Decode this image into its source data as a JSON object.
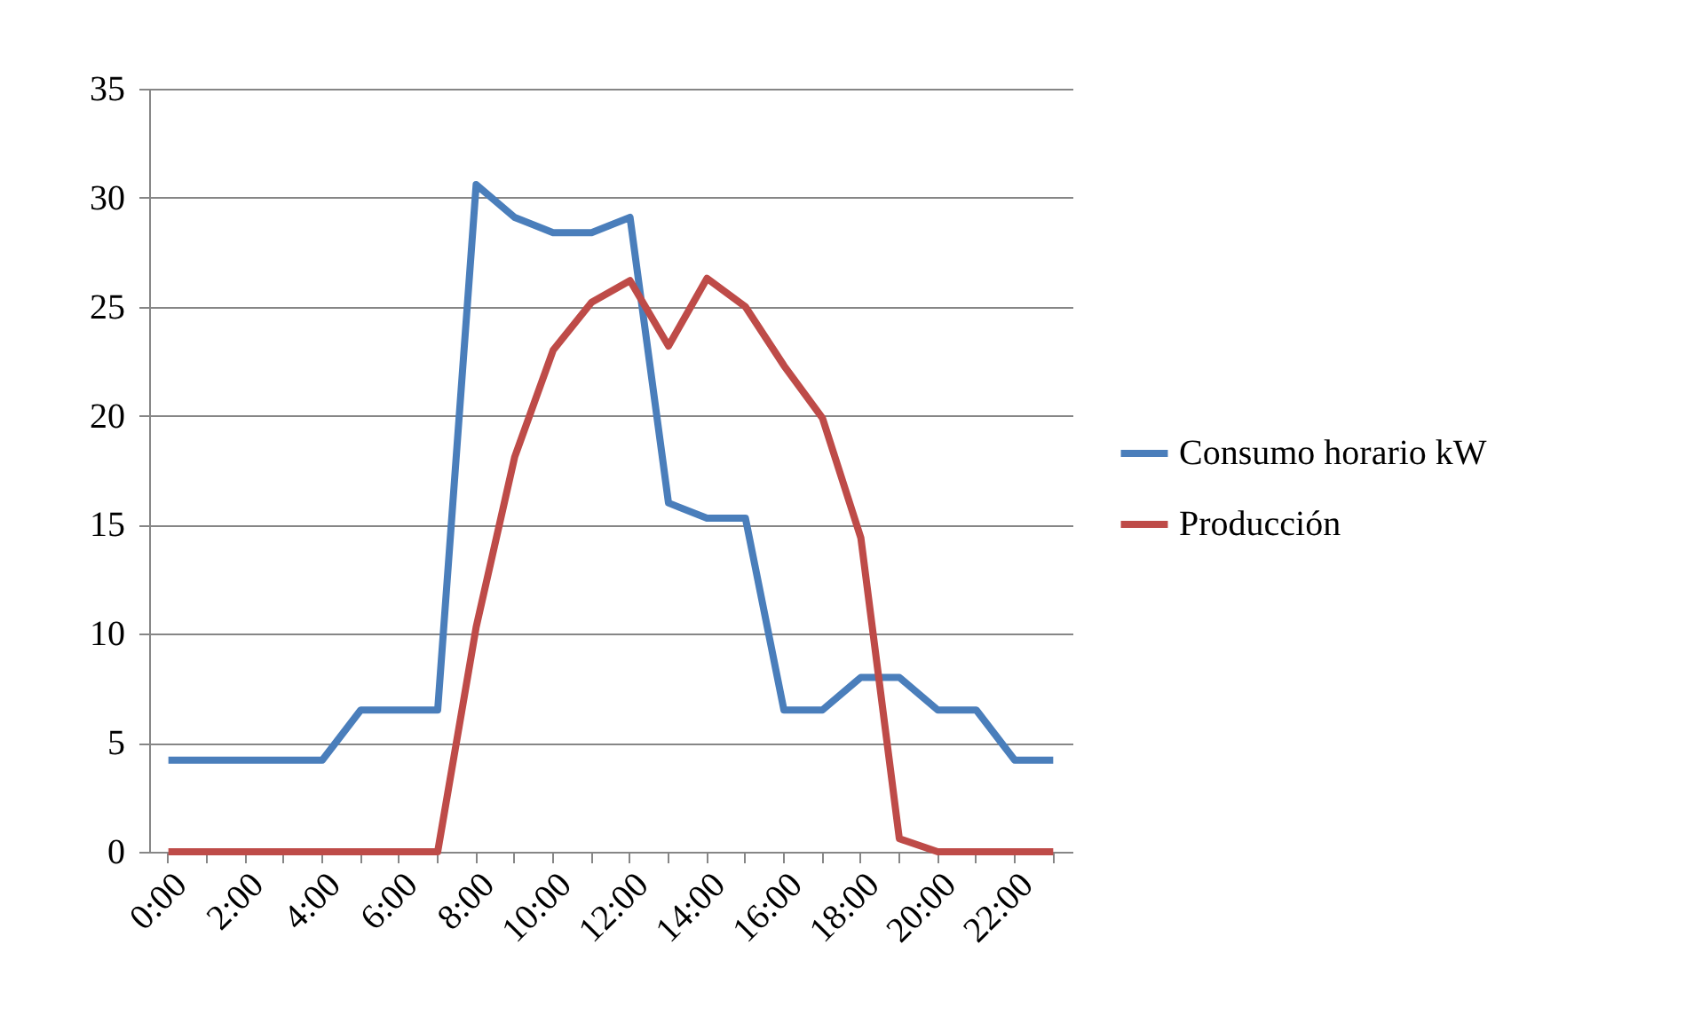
{
  "chart_data": {
    "type": "line",
    "categories": [
      "0:00",
      null,
      "2:00",
      null,
      "4:00",
      null,
      "6:00",
      null,
      "8:00",
      null,
      "10:00",
      null,
      "12:00",
      null,
      "14:00",
      null,
      "16:00",
      null,
      "18:00",
      null,
      "20:00",
      null,
      "22:00",
      null
    ],
    "series": [
      {
        "name": "Consumo horario kW",
        "color": "#4a7ebb",
        "values": [
          4.2,
          4.2,
          4.2,
          4.2,
          4.2,
          6.5,
          6.5,
          6.5,
          30.6,
          29.1,
          28.4,
          28.4,
          29.1,
          16,
          15.3,
          15.3,
          6.5,
          6.5,
          8,
          8,
          6.5,
          6.5,
          4.2,
          4.2
        ]
      },
      {
        "name": "Producción",
        "color": "#be4b48",
        "values": [
          0,
          0,
          0,
          0,
          0,
          0,
          0,
          0,
          10.3,
          18.1,
          23,
          25.2,
          26.2,
          23.2,
          26.3,
          25,
          22.3,
          19.9,
          14.4,
          0.6,
          0,
          0,
          0,
          0
        ]
      }
    ],
    "ylim": [
      0,
      35
    ],
    "yticks": [
      0,
      5,
      10,
      15,
      20,
      25,
      30,
      35
    ],
    "grid": "y",
    "legend": "right",
    "marker": "none",
    "line_style": "solid"
  }
}
